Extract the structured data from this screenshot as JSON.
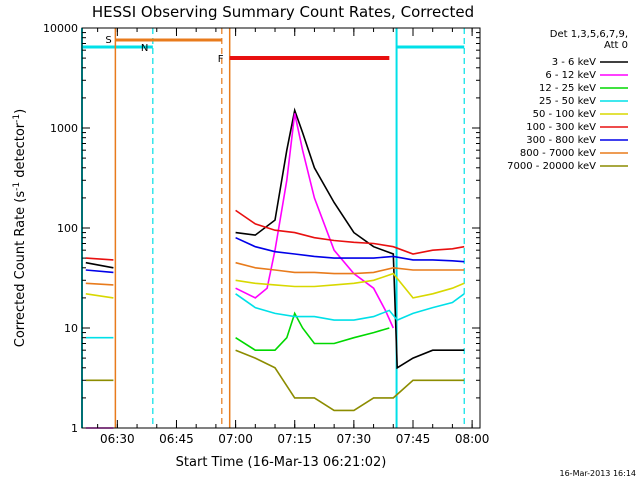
{
  "chart_data": {
    "type": "line",
    "title": "HESSI Observing Summary Count Rates, Corrected",
    "xlabel": "Start Time (16-Mar-13 06:21:02)",
    "ylabel_main": "Corrected Count Rate (s",
    "ylabel_sup1": "-1",
    "ylabel_mid": " detector",
    "ylabel_sup2": "-1",
    "ylabel_end": ")",
    "yscale": "log",
    "ylim": [
      1,
      10000
    ],
    "xlim": [
      "06:21:02",
      "08:02:00"
    ],
    "x_ticks": [
      "06:30",
      "06:45",
      "07:00",
      "07:15",
      "07:30",
      "07:45",
      "08:00"
    ],
    "y_ticks": [
      "1",
      "10",
      "100",
      "1000",
      "10000"
    ],
    "legend_header": [
      "Det 1,3,5,6,7,9,",
      "Att 0"
    ],
    "legend_position": "right",
    "timestamp": "16-Mar-2013 16:14",
    "flags": [
      {
        "label": "S",
        "color": "#e87b1c"
      },
      {
        "label": "N",
        "color": "#00e0e8"
      },
      {
        "label": "F",
        "color": "#e81010"
      }
    ],
    "series": [
      {
        "name": "3 - 6 keV",
        "color": "#000000",
        "x": [
          "06:22",
          "06:29",
          "06:31",
          "06:58",
          "07:00",
          "07:05",
          "07:10",
          "07:13",
          "07:15",
          "07:17",
          "07:20",
          "07:25",
          "07:30",
          "07:35",
          "07:40",
          "07:41",
          "07:45",
          "07:50",
          "07:55",
          "07:58"
        ],
        "y": [
          45,
          40,
          null,
          null,
          90,
          85,
          120,
          600,
          1500,
          900,
          400,
          180,
          90,
          65,
          55,
          4,
          5,
          6,
          6,
          6
        ]
      },
      {
        "name": "6 - 12 keV",
        "color": "#ff00ff",
        "x": [
          "06:22",
          "06:29",
          "06:31",
          "06:58",
          "07:00",
          "07:05",
          "07:08",
          "07:10",
          "07:13",
          "07:15",
          "07:17",
          "07:20",
          "07:25",
          "07:30",
          "07:35",
          "07:38",
          "07:40"
        ],
        "y": [
          1,
          1,
          null,
          null,
          25,
          20,
          25,
          60,
          300,
          1400,
          600,
          200,
          60,
          35,
          25,
          15,
          10
        ]
      },
      {
        "name": "12 - 25 keV",
        "color": "#00d800",
        "x": [
          "06:58",
          "07:00",
          "07:05",
          "07:10",
          "07:13",
          "07:15",
          "07:17",
          "07:20",
          "07:25",
          "07:30",
          "07:35",
          "07:39"
        ],
        "y": [
          null,
          8,
          6,
          6,
          8,
          14,
          10,
          7,
          7,
          8,
          9,
          10
        ]
      },
      {
        "name": "25 - 50 keV",
        "color": "#00e0e8",
        "x": [
          "06:22",
          "06:29",
          "06:31",
          "06:58",
          "07:00",
          "07:05",
          "07:10",
          "07:15",
          "07:20",
          "07:25",
          "07:30",
          "07:35",
          "07:39",
          "07:41",
          "07:45",
          "07:50",
          "07:55",
          "07:58"
        ],
        "y": [
          8,
          8,
          null,
          null,
          22,
          16,
          14,
          13,
          13,
          12,
          12,
          13,
          15,
          12,
          14,
          16,
          18,
          22
        ]
      },
      {
        "name": "50 - 100 keV",
        "color": "#d8d800",
        "x": [
          "06:22",
          "06:29",
          "06:31",
          "06:58",
          "07:00",
          "07:05",
          "07:10",
          "07:15",
          "07:20",
          "07:25",
          "07:30",
          "07:35",
          "07:40",
          "07:45",
          "07:50",
          "07:55",
          "07:58"
        ],
        "y": [
          22,
          20,
          null,
          null,
          30,
          28,
          27,
          26,
          26,
          27,
          28,
          30,
          35,
          20,
          22,
          25,
          28
        ]
      },
      {
        "name": "100 - 300 keV",
        "color": "#e81010",
        "x": [
          "06:22",
          "06:29",
          "06:31",
          "06:58",
          "07:00",
          "07:05",
          "07:10",
          "07:15",
          "07:20",
          "07:25",
          "07:30",
          "07:35",
          "07:40",
          "07:45",
          "07:50",
          "07:55",
          "07:58"
        ],
        "y": [
          50,
          48,
          null,
          null,
          150,
          110,
          95,
          90,
          80,
          75,
          72,
          70,
          65,
          55,
          60,
          62,
          65
        ]
      },
      {
        "name": "300 - 800 keV",
        "color": "#0000e8",
        "x": [
          "06:22",
          "06:29",
          "06:31",
          "06:58",
          "07:00",
          "07:05",
          "07:10",
          "07:15",
          "07:20",
          "07:25",
          "07:30",
          "07:35",
          "07:40",
          "07:45",
          "07:50",
          "07:55",
          "07:58"
        ],
        "y": [
          38,
          36,
          null,
          null,
          80,
          65,
          58,
          55,
          52,
          50,
          50,
          50,
          52,
          48,
          48,
          47,
          46
        ]
      },
      {
        "name": "800 - 7000 keV",
        "color": "#e87b1c",
        "x": [
          "06:22",
          "06:29",
          "06:31",
          "06:58",
          "07:00",
          "07:05",
          "07:10",
          "07:15",
          "07:20",
          "07:25",
          "07:30",
          "07:35",
          "07:40",
          "07:45",
          "07:50",
          "07:55",
          "07:58"
        ],
        "y": [
          28,
          27,
          null,
          null,
          45,
          40,
          38,
          36,
          36,
          35,
          35,
          36,
          40,
          38,
          38,
          38,
          38
        ]
      },
      {
        "name": "7000 - 20000 keV",
        "color": "#8c8c00",
        "x": [
          "06:22",
          "06:29",
          "06:31",
          "06:58",
          "07:00",
          "07:05",
          "07:10",
          "07:15",
          "07:20",
          "07:25",
          "07:30",
          "07:35",
          "07:40",
          "07:45",
          "07:50",
          "07:55",
          "07:58"
        ],
        "y": [
          3,
          3,
          null,
          null,
          6,
          5,
          4,
          2,
          2,
          1.5,
          1.5,
          2,
          2,
          3,
          3,
          3,
          3
        ]
      }
    ]
  }
}
